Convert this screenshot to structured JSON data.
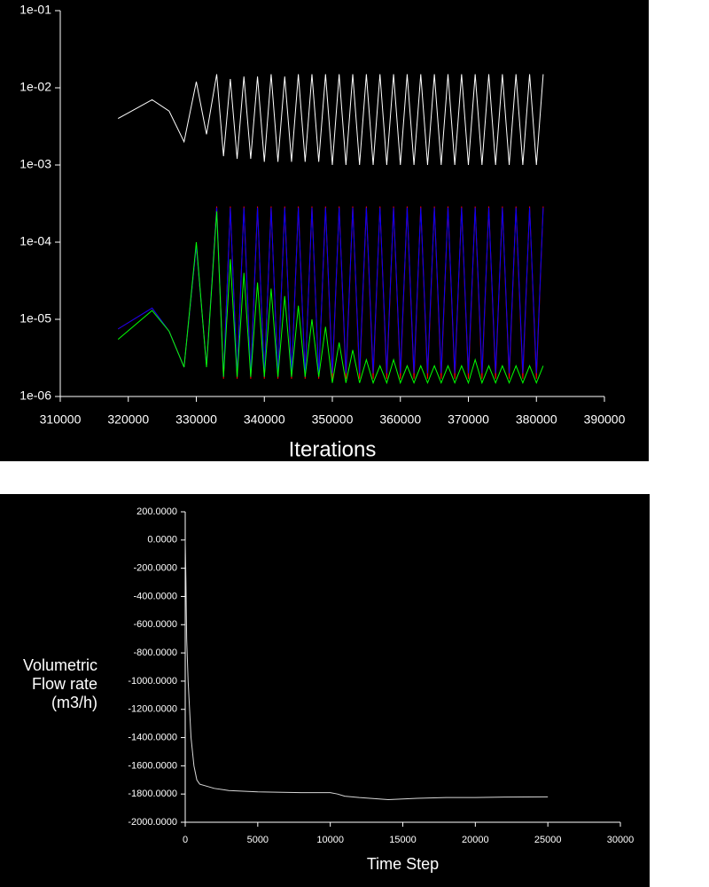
{
  "chart_data": [
    {
      "type": "line",
      "log_y": true,
      "x_label": "Iterations",
      "xlim": [
        310000,
        390000
      ],
      "xticks": [
        310000,
        320000,
        330000,
        340000,
        350000,
        360000,
        370000,
        380000,
        390000
      ],
      "ylim": [
        1e-06,
        0.1
      ],
      "yticks": [
        {
          "value": 1e-06,
          "label": "1e-06"
        },
        {
          "value": 1e-05,
          "label": "1e-05"
        },
        {
          "value": 0.0001,
          "label": "1e-04"
        },
        {
          "value": 0.001,
          "label": "1e-03"
        },
        {
          "value": 0.01,
          "label": "1e-02"
        },
        {
          "value": 0.1,
          "label": "1e-01"
        }
      ],
      "x": [
        318500,
        323500,
        326000,
        328200,
        330000,
        331500,
        333000,
        334000,
        335000,
        336000,
        337000,
        338000,
        339000,
        340000,
        341000,
        342000,
        343000,
        344000,
        345000,
        346000,
        347000,
        348000,
        349000,
        350000,
        351000,
        352000,
        353000,
        354000,
        355000,
        356000,
        357000,
        358000,
        359000,
        360000,
        361000,
        362000,
        363000,
        364000,
        365000,
        366000,
        367000,
        368000,
        369000,
        370000,
        371000,
        372000,
        373000,
        374000,
        375000,
        376000,
        377000,
        378000,
        379000,
        380000,
        381000
      ],
      "series": [
        {
          "color": "#ffffff",
          "values": [
            0.004,
            0.007,
            0.005,
            0.002,
            0.012,
            0.0025,
            0.015,
            0.0013,
            0.013,
            0.0012,
            0.014,
            0.0012,
            0.014,
            0.0011,
            0.015,
            0.0011,
            0.014,
            0.0011,
            0.015,
            0.0011,
            0.015,
            0.0011,
            0.015,
            0.001,
            0.015,
            0.001,
            0.015,
            0.001,
            0.015,
            0.001,
            0.015,
            0.001,
            0.015,
            0.001,
            0.015,
            0.001,
            0.015,
            0.001,
            0.015,
            0.001,
            0.015,
            0.001,
            0.015,
            0.001,
            0.015,
            0.001,
            0.015,
            0.001,
            0.015,
            0.001,
            0.015,
            0.001,
            0.015,
            0.001,
            0.015
          ]
        },
        {
          "color": "#ff0000",
          "values": [
            7.5e-06,
            1.4e-05,
            7e-06,
            2.4e-06,
            9e-05,
            2.5e-06,
            0.00029,
            1.7e-06,
            0.00029,
            1.7e-06,
            0.00029,
            1.7e-06,
            0.00029,
            1.7e-06,
            0.00029,
            1.7e-06,
            0.00029,
            1.7e-06,
            0.00029,
            1.7e-06,
            0.00029,
            1.7e-06,
            0.00029,
            1.7e-06,
            0.00029,
            1.7e-06,
            0.00029,
            1.7e-06,
            0.00029,
            1.7e-06,
            0.00029,
            1.7e-06,
            0.00029,
            1.7e-06,
            0.00029,
            1.7e-06,
            0.00029,
            1.7e-06,
            0.00029,
            1.7e-06,
            0.00029,
            1.7e-06,
            0.00029,
            1.7e-06,
            0.00029,
            1.7e-06,
            0.00029,
            1.7e-06,
            0.00029,
            1.7e-06,
            0.00029,
            1.7e-06,
            0.00029,
            1.7e-06,
            0.00029
          ]
        },
        {
          "color": "#0000ff",
          "values": [
            7.5e-06,
            1.4e-05,
            7e-06,
            2.4e-06,
            9e-05,
            2.5e-06,
            0.00028,
            1.8e-06,
            0.00028,
            1.8e-06,
            0.00028,
            1.8e-06,
            0.00028,
            1.8e-06,
            0.00028,
            1.8e-06,
            0.00028,
            1.8e-06,
            0.00028,
            1.8e-06,
            0.00028,
            1.8e-06,
            0.00028,
            2e-06,
            0.00028,
            2e-06,
            0.00028,
            2e-06,
            0.00028,
            2e-06,
            0.00028,
            2e-06,
            0.00028,
            2e-06,
            0.00028,
            2e-06,
            0.00028,
            2e-06,
            0.00028,
            2e-06,
            0.00028,
            2e-06,
            0.00028,
            2e-06,
            0.00028,
            2e-06,
            0.00028,
            2e-06,
            0.00028,
            2e-06,
            0.00028,
            2e-06,
            0.00028,
            2e-06,
            0.00028
          ]
        },
        {
          "color": "#00ff00",
          "values": [
            5.5e-06,
            1.3e-05,
            7e-06,
            2.4e-06,
            0.0001,
            2.4e-06,
            0.00025,
            1.8e-06,
            6e-05,
            1.8e-06,
            4e-05,
            1.8e-06,
            3e-05,
            1.8e-06,
            2.5e-05,
            1.8e-06,
            2e-05,
            1.8e-06,
            1.5e-05,
            1.8e-06,
            1e-05,
            1.8e-06,
            8e-06,
            1.5e-06,
            5e-06,
            1.5e-06,
            4e-06,
            1.5e-06,
            3e-06,
            1.5e-06,
            2.5e-06,
            1.5e-06,
            3e-06,
            1.5e-06,
            2.5e-06,
            1.5e-06,
            2.5e-06,
            1.5e-06,
            2.5e-06,
            1.5e-06,
            2.5e-06,
            1.5e-06,
            2.5e-06,
            1.5e-06,
            3e-06,
            1.5e-06,
            2.5e-06,
            1.5e-06,
            2.5e-06,
            1.5e-06,
            2.5e-06,
            1.5e-06,
            2.5e-06,
            1.5e-06,
            2.5e-06
          ]
        }
      ]
    },
    {
      "type": "line",
      "log_y": false,
      "x_label": "Time Step",
      "y_label": "Volumetric Flow rate (m3/h)",
      "xlim": [
        0,
        30000
      ],
      "xticks": [
        0,
        5000,
        10000,
        15000,
        20000,
        25000,
        30000
      ],
      "ylim": [
        -2000,
        200
      ],
      "yticks": [
        {
          "value": 200,
          "label": "200.0000"
        },
        {
          "value": 0,
          "label": "0.0000"
        },
        {
          "value": -200,
          "label": "-200.0000"
        },
        {
          "value": -400,
          "label": "-400.0000"
        },
        {
          "value": -600,
          "label": "-600.0000"
        },
        {
          "value": -800,
          "label": "-800.0000"
        },
        {
          "value": -1000,
          "label": "-1000.0000"
        },
        {
          "value": -1200,
          "label": "-1200.0000"
        },
        {
          "value": -1400,
          "label": "-1400.0000"
        },
        {
          "value": -1600,
          "label": "-1600.0000"
        },
        {
          "value": -1800,
          "label": "-1800.0000"
        },
        {
          "value": -2000,
          "label": "-2000.0000"
        }
      ],
      "x": [
        0,
        50,
        100,
        200,
        400,
        600,
        800,
        1000,
        2000,
        3000,
        5000,
        8000,
        10000,
        10500,
        11000,
        12000,
        14000,
        16000,
        18000,
        20000,
        22000,
        25000
      ],
      "series": [
        {
          "color": "#d8d8d8",
          "values": [
            0,
            -300,
            -700,
            -1000,
            -1400,
            -1600,
            -1700,
            -1730,
            -1760,
            -1775,
            -1785,
            -1790,
            -1790,
            -1800,
            -1815,
            -1825,
            -1840,
            -1830,
            -1825,
            -1825,
            -1822,
            -1820
          ]
        }
      ]
    }
  ]
}
